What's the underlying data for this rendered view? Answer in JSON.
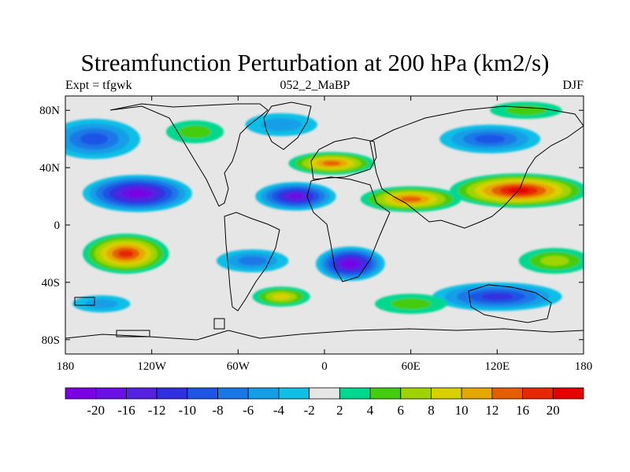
{
  "title": "Streamfunction Perturbation at 200 hPa (km2/s)",
  "subtitle": {
    "left": "Expt = tfgwk",
    "center": "052_2_MaBP",
    "right": "DJF"
  },
  "map": {
    "lon_range": [
      -180,
      180
    ],
    "lat_range": [
      -90,
      90
    ],
    "x_ticks": [
      {
        "lon": -180,
        "label": "180"
      },
      {
        "lon": -120,
        "label": "120W"
      },
      {
        "lon": -60,
        "label": "60W"
      },
      {
        "lon": 0,
        "label": "0"
      },
      {
        "lon": 60,
        "label": "60E"
      },
      {
        "lon": 120,
        "label": "120E"
      },
      {
        "lon": 180,
        "label": "180"
      }
    ],
    "y_ticks": [
      {
        "lat": 80,
        "label": "80N"
      },
      {
        "lat": 40,
        "label": "40N"
      },
      {
        "lat": 0,
        "label": "0"
      },
      {
        "lat": -40,
        "label": "40S"
      },
      {
        "lat": -80,
        "label": "80S"
      }
    ],
    "background_color": "#e6e6e6",
    "field_features": [
      {
        "lon": -130,
        "lat": 22,
        "value": -20,
        "rx": 38,
        "ry": 13
      },
      {
        "lon": -20,
        "lat": 20,
        "value": -16,
        "rx": 28,
        "ry": 10
      },
      {
        "lon": 18,
        "lat": -27,
        "value": -20,
        "rx": 24,
        "ry": 12
      },
      {
        "lon": -50,
        "lat": -25,
        "value": -6,
        "rx": 25,
        "ry": 8
      },
      {
        "lon": -160,
        "lat": 60,
        "value": -8,
        "rx": 32,
        "ry": 14
      },
      {
        "lon": 115,
        "lat": 60,
        "value": -8,
        "rx": 35,
        "ry": 10
      },
      {
        "lon": 120,
        "lat": -50,
        "value": -10,
        "rx": 45,
        "ry": 10
      },
      {
        "lon": -155,
        "lat": -55,
        "value": -4,
        "rx": 20,
        "ry": 6
      },
      {
        "lon": -30,
        "lat": 70,
        "value": -4,
        "rx": 25,
        "ry": 8
      },
      {
        "lon": 140,
        "lat": 80,
        "value": 4,
        "rx": 25,
        "ry": 6
      },
      {
        "lon": -138,
        "lat": -20,
        "value": 16,
        "rx": 30,
        "ry": 14
      },
      {
        "lon": 135,
        "lat": 24,
        "value": 20,
        "rx": 48,
        "ry": 12
      },
      {
        "lon": 60,
        "lat": 18,
        "value": 12,
        "rx": 35,
        "ry": 9
      },
      {
        "lon": 5,
        "lat": 43,
        "value": 12,
        "rx": 30,
        "ry": 8
      },
      {
        "lon": -30,
        "lat": -50,
        "value": 8,
        "rx": 20,
        "ry": 7
      },
      {
        "lon": 160,
        "lat": -25,
        "value": 6,
        "rx": 25,
        "ry": 9
      },
      {
        "lon": 60,
        "lat": -55,
        "value": 4,
        "rx": 25,
        "ry": 7
      },
      {
        "lon": -90,
        "lat": 65,
        "value": 4,
        "rx": 20,
        "ry": 8
      }
    ]
  },
  "colorbar": {
    "colors": [
      "#7b00e6",
      "#6a10e6",
      "#5522e0",
      "#3030e0",
      "#1f55e6",
      "#1a78e6",
      "#149ee6",
      "#10bfe6",
      "#e6e6e6",
      "#00d890",
      "#44cc10",
      "#a0d400",
      "#d8d000",
      "#e6a800",
      "#e65e00",
      "#e62800",
      "#e60000"
    ],
    "labels": [
      "-20",
      "-16",
      "-12",
      "-10",
      "-8",
      "-6",
      "-4",
      "-2",
      "2",
      "4",
      "6",
      "8",
      "10",
      "12",
      "16",
      "20"
    ]
  }
}
